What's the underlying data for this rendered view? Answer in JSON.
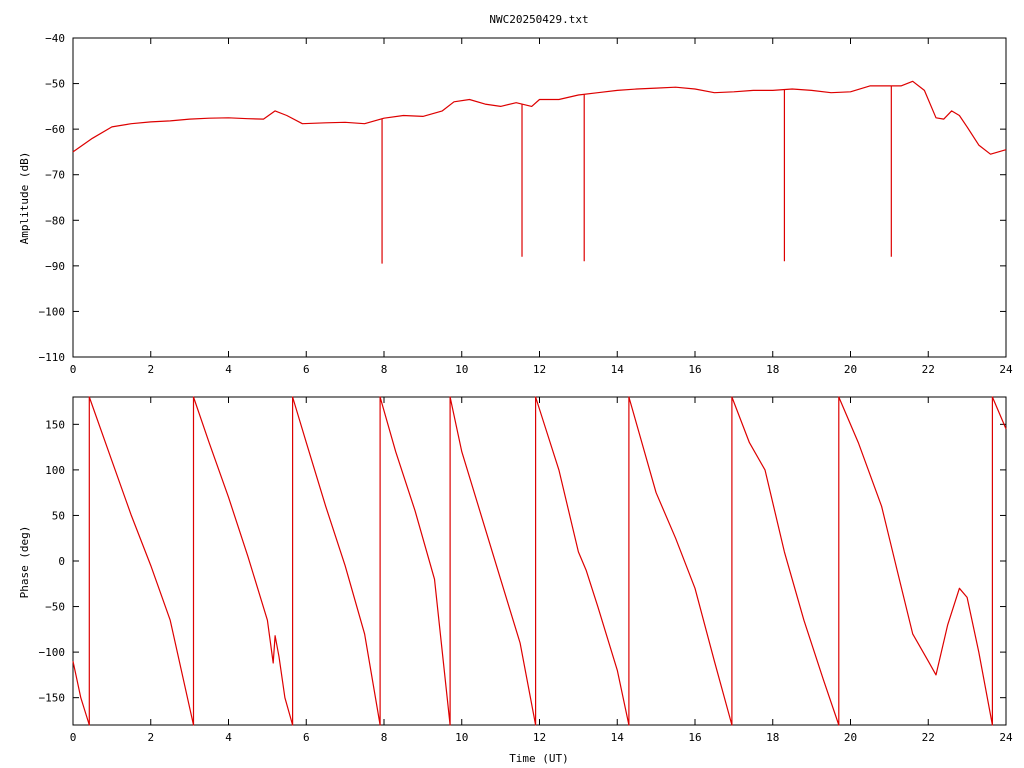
{
  "chart_data": [
    {
      "type": "line",
      "title": "NWC20250429.txt",
      "xlabel": "",
      "ylabel": "Amplitude (dB)",
      "xlim": [
        0,
        24
      ],
      "ylim": [
        -110,
        -40
      ],
      "xticks": [
        0,
        2,
        4,
        6,
        8,
        10,
        12,
        14,
        16,
        18,
        20,
        22,
        24
      ],
      "yticks": [
        -40,
        -50,
        -60,
        -70,
        -80,
        -90,
        -100,
        -110
      ],
      "grid": false,
      "color": "#dd0000",
      "series": [
        {
          "x": [
            0,
            0.5,
            1,
            1.5,
            2,
            2.5,
            3,
            3.5,
            4,
            4.5,
            4.9,
            5.2,
            5.5,
            5.9,
            6.5,
            7,
            7.5,
            8,
            8.5,
            9,
            9.5,
            9.8,
            10.2,
            10.6,
            11,
            11.4,
            11.8,
            12,
            12.5,
            13,
            13.5,
            14,
            14.5,
            15,
            15.5,
            16,
            16.5,
            17,
            17.5,
            18,
            18.5,
            19,
            19.5,
            20,
            20.5,
            21,
            21.3,
            21.6,
            21.9,
            22.2,
            22.4,
            22.6,
            22.8,
            23,
            23.3,
            23.6,
            24
          ],
          "y": [
            -65,
            -62,
            -59.5,
            -58.8,
            -58.4,
            -58.2,
            -57.8,
            -57.6,
            -57.5,
            -57.7,
            -57.8,
            -56,
            -57,
            -58.8,
            -58.6,
            -58.5,
            -58.8,
            -57.6,
            -57,
            -57.2,
            -56,
            -54,
            -53.5,
            -54.5,
            -55,
            -54.2,
            -55,
            -53.5,
            -53.5,
            -52.5,
            -52,
            -51.5,
            -51.2,
            -51,
            -50.8,
            -51.2,
            -52,
            -51.8,
            -51.5,
            -51.5,
            -51.2,
            -51.5,
            -52,
            -51.8,
            -50.5,
            -50.5,
            -50.5,
            -49.5,
            -51.5,
            -57.5,
            -57.8,
            -56,
            -57,
            -59.5,
            -63.5,
            -65.5,
            -64.5
          ]
        }
      ],
      "spikes": [
        {
          "x": 7.95,
          "y": -89.5
        },
        {
          "x": 11.55,
          "y": -88
        },
        {
          "x": 13.15,
          "y": -89
        },
        {
          "x": 18.3,
          "y": -89
        },
        {
          "x": 21.05,
          "y": -88
        }
      ]
    },
    {
      "type": "line",
      "title": "",
      "xlabel": "Time (UT)",
      "ylabel": "Phase (deg)",
      "xlim": [
        0,
        24
      ],
      "ylim": [
        -180,
        180
      ],
      "xticks": [
        0,
        2,
        4,
        6,
        8,
        10,
        12,
        14,
        16,
        18,
        20,
        22,
        24
      ],
      "yticks": [
        150,
        100,
        50,
        0,
        -50,
        -100,
        -150
      ],
      "grid": false,
      "color": "#dd0000",
      "wrap_times": [
        0.42,
        3.1,
        5.65,
        7.9,
        9.7,
        11.9,
        14.3,
        16.95,
        19.7,
        23.65
      ],
      "series": [
        {
          "x": [
            0,
            0.2,
            0.42,
            0.42,
            1,
            1.5,
            2,
            2.5,
            3.1,
            3.1,
            3.5,
            4,
            4.5,
            5,
            5.15,
            5.2,
            5.3,
            5.45,
            5.65,
            5.65,
            6,
            6.5,
            7,
            7.5,
            7.9,
            7.9,
            8.3,
            8.8,
            9.3,
            9.7,
            9.7,
            10,
            10.5,
            11,
            11.5,
            11.9,
            11.9,
            12.5,
            13,
            13.2,
            13.5,
            14,
            14.3,
            14.3,
            15,
            15.5,
            16,
            16.5,
            16.95,
            16.95,
            17.4,
            17.8,
            18.3,
            18.8,
            19.3,
            19.7,
            19.7,
            20.2,
            20.8,
            21.2,
            21.6,
            22,
            22.2,
            22.5,
            22.8,
            23,
            23.3,
            23.65,
            23.65,
            24
          ],
          "y": [
            -110,
            -150,
            -180,
            180,
            110,
            50,
            -5,
            -65,
            -180,
            180,
            130,
            70,
            5,
            -65,
            -112,
            -82,
            -105,
            -150,
            -180,
            180,
            130,
            60,
            -5,
            -80,
            -180,
            180,
            120,
            55,
            -20,
            -180,
            180,
            120,
            50,
            -20,
            -90,
            -180,
            180,
            100,
            10,
            -10,
            -50,
            -120,
            -180,
            180,
            75,
            25,
            -30,
            -110,
            -180,
            180,
            130,
            100,
            10,
            -65,
            -130,
            -180,
            180,
            130,
            60,
            -10,
            -80,
            -110,
            -125,
            -70,
            -30,
            -40,
            -100,
            -180,
            180,
            145
          ]
        }
      ]
    }
  ]
}
